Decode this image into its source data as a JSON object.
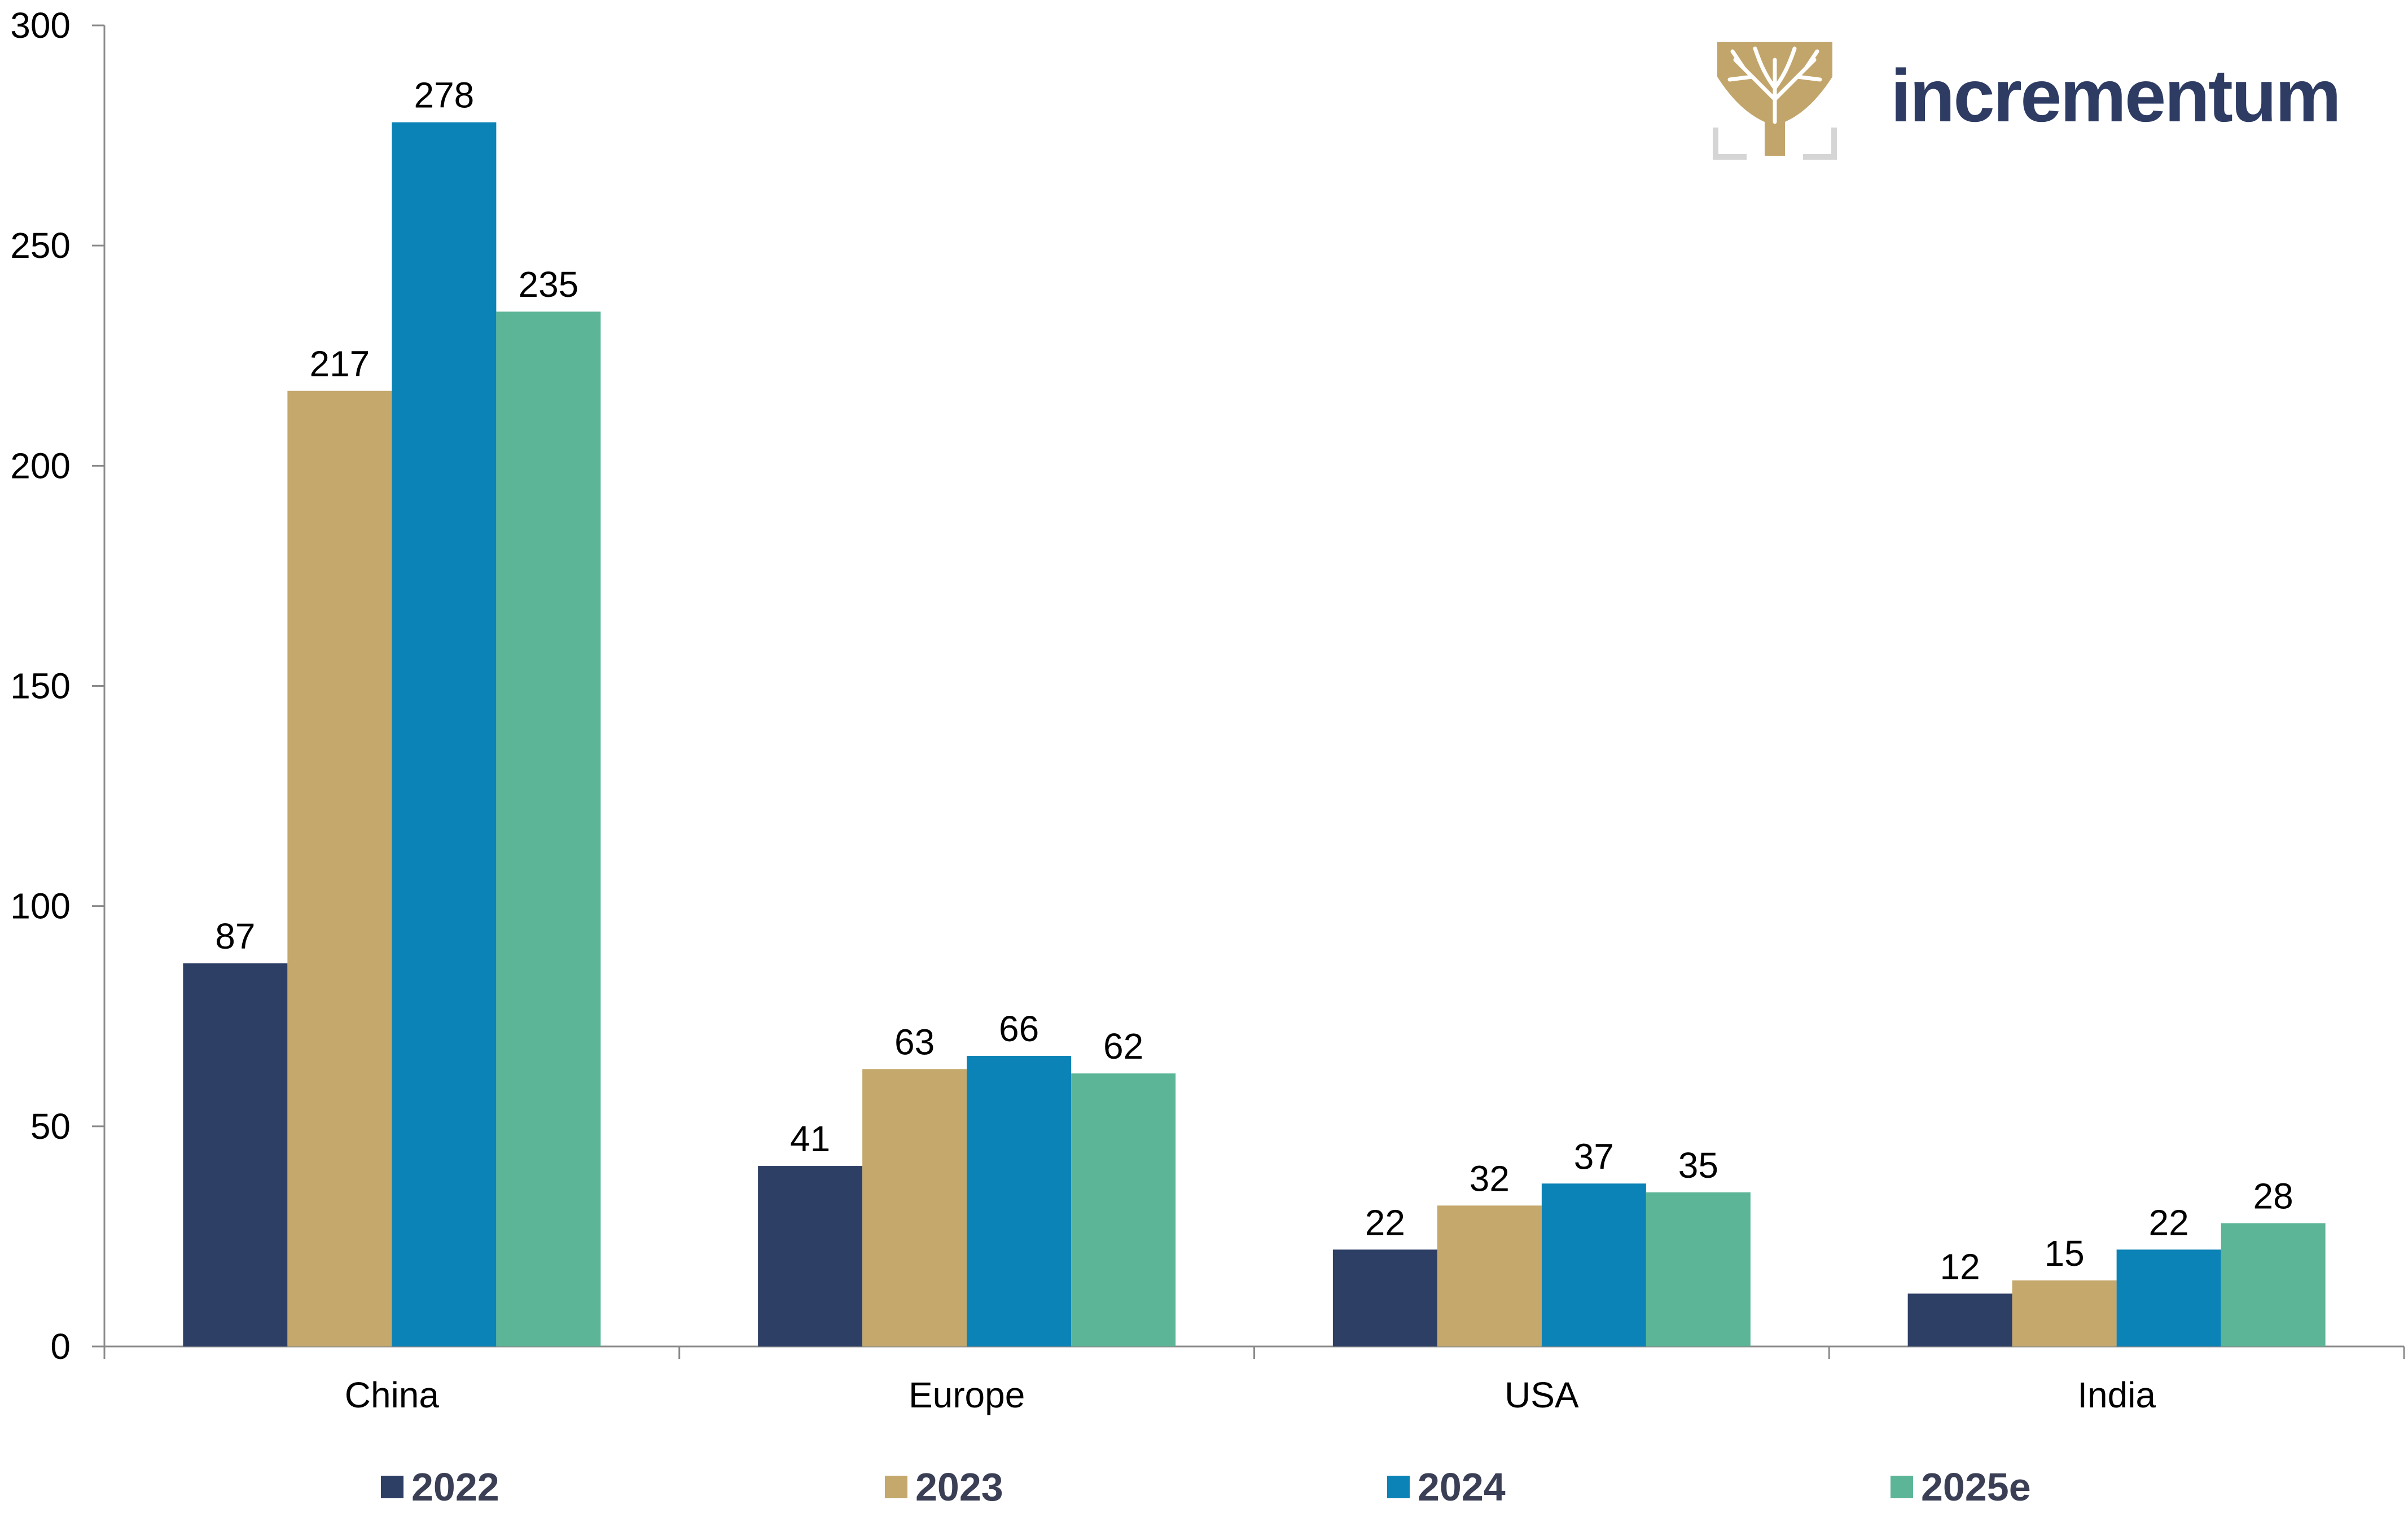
{
  "brand": {
    "name": "incrementum",
    "logo": "tree-logo-icon",
    "logo_color": "#c2a56b",
    "text_color": "#2e3c64"
  },
  "chart_data": {
    "type": "bar",
    "categories": [
      "China",
      "Europe",
      "USA",
      "India"
    ],
    "series": [
      {
        "name": "2022",
        "color": "#2e3f66",
        "values": [
          87,
          41,
          22,
          12
        ]
      },
      {
        "name": "2023",
        "color": "#c4a86c",
        "values": [
          217,
          63,
          32,
          15
        ]
      },
      {
        "name": "2024",
        "color": "#0b83b6",
        "values": [
          278,
          66,
          37,
          22
        ]
      },
      {
        "name": "2025e",
        "color": "#5bb596",
        "values": [
          235,
          62,
          35,
          28
        ]
      }
    ],
    "ylim": [
      0,
      300
    ],
    "yticks": [
      0,
      50,
      100,
      150,
      200,
      250,
      300
    ],
    "title": "",
    "xlabel": "",
    "ylabel": "",
    "grid": false,
    "legend_position": "bottom",
    "data_labels": true
  }
}
